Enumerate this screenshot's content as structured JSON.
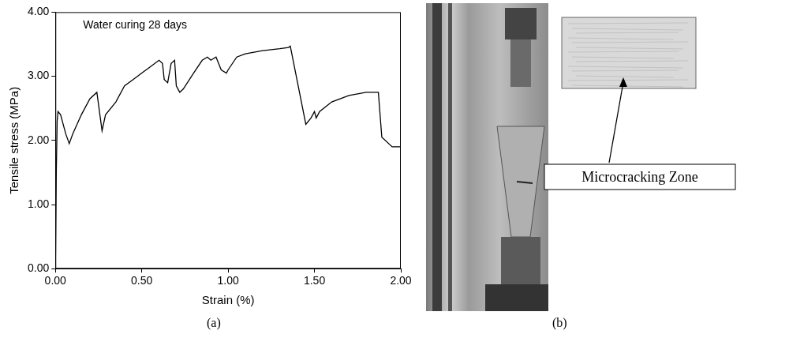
{
  "chart_data": {
    "type": "line",
    "annotation": "Water curing 28 days",
    "x_label": "Strain (%)",
    "y_label": "Tensile stress (MPa)",
    "x": [
      0,
      0.005,
      0.01,
      0.015,
      0.03,
      0.06,
      0.08,
      0.1,
      0.15,
      0.2,
      0.24,
      0.25,
      0.27,
      0.29,
      0.35,
      0.4,
      0.45,
      0.5,
      0.55,
      0.6,
      0.62,
      0.63,
      0.65,
      0.67,
      0.69,
      0.7,
      0.72,
      0.74,
      0.8,
      0.85,
      0.88,
      0.9,
      0.93,
      0.96,
      0.99,
      1.0,
      1.05,
      1.1,
      1.2,
      1.3,
      1.35,
      1.36,
      1.45,
      1.48,
      1.5,
      1.51,
      1.53,
      1.6,
      1.7,
      1.8,
      1.87,
      1.89,
      1.95,
      2.0
    ],
    "values": [
      0,
      1.5,
      2.3,
      2.45,
      2.4,
      2.1,
      1.95,
      2.1,
      2.4,
      2.65,
      2.75,
      2.55,
      2.15,
      2.4,
      2.6,
      2.85,
      2.95,
      3.05,
      3.15,
      3.25,
      3.2,
      2.95,
      2.9,
      3.2,
      3.25,
      2.85,
      2.75,
      2.8,
      3.05,
      3.25,
      3.3,
      3.25,
      3.3,
      3.1,
      3.05,
      3.1,
      3.3,
      3.35,
      3.4,
      3.43,
      3.45,
      3.47,
      2.25,
      2.35,
      2.45,
      2.35,
      2.45,
      2.6,
      2.7,
      2.75,
      2.75,
      2.05,
      1.9,
      1.9
    ],
    "color": "#000000",
    "xlim": [
      0,
      2
    ],
    "xticks": [
      {
        "value": 0,
        "label": "0.00"
      },
      {
        "value": 0.5,
        "label": "0.50"
      },
      {
        "value": 1,
        "label": "1.00"
      },
      {
        "value": 1.5,
        "label": "1.50"
      },
      {
        "value": 2,
        "label": "2.00"
      }
    ],
    "ylim": [
      0,
      4
    ],
    "yticks": [
      {
        "value": 0,
        "label": "0.00"
      },
      {
        "value": 1,
        "label": "1.00"
      },
      {
        "value": 2,
        "label": "2.00"
      },
      {
        "value": 3,
        "label": "3.00"
      },
      {
        "value": 4,
        "label": "4.00"
      }
    ],
    "grid": false
  },
  "figure": {
    "panel_labels": [
      "(a)",
      "(b)"
    ],
    "photo_annotation": "Microcracking Zone"
  }
}
